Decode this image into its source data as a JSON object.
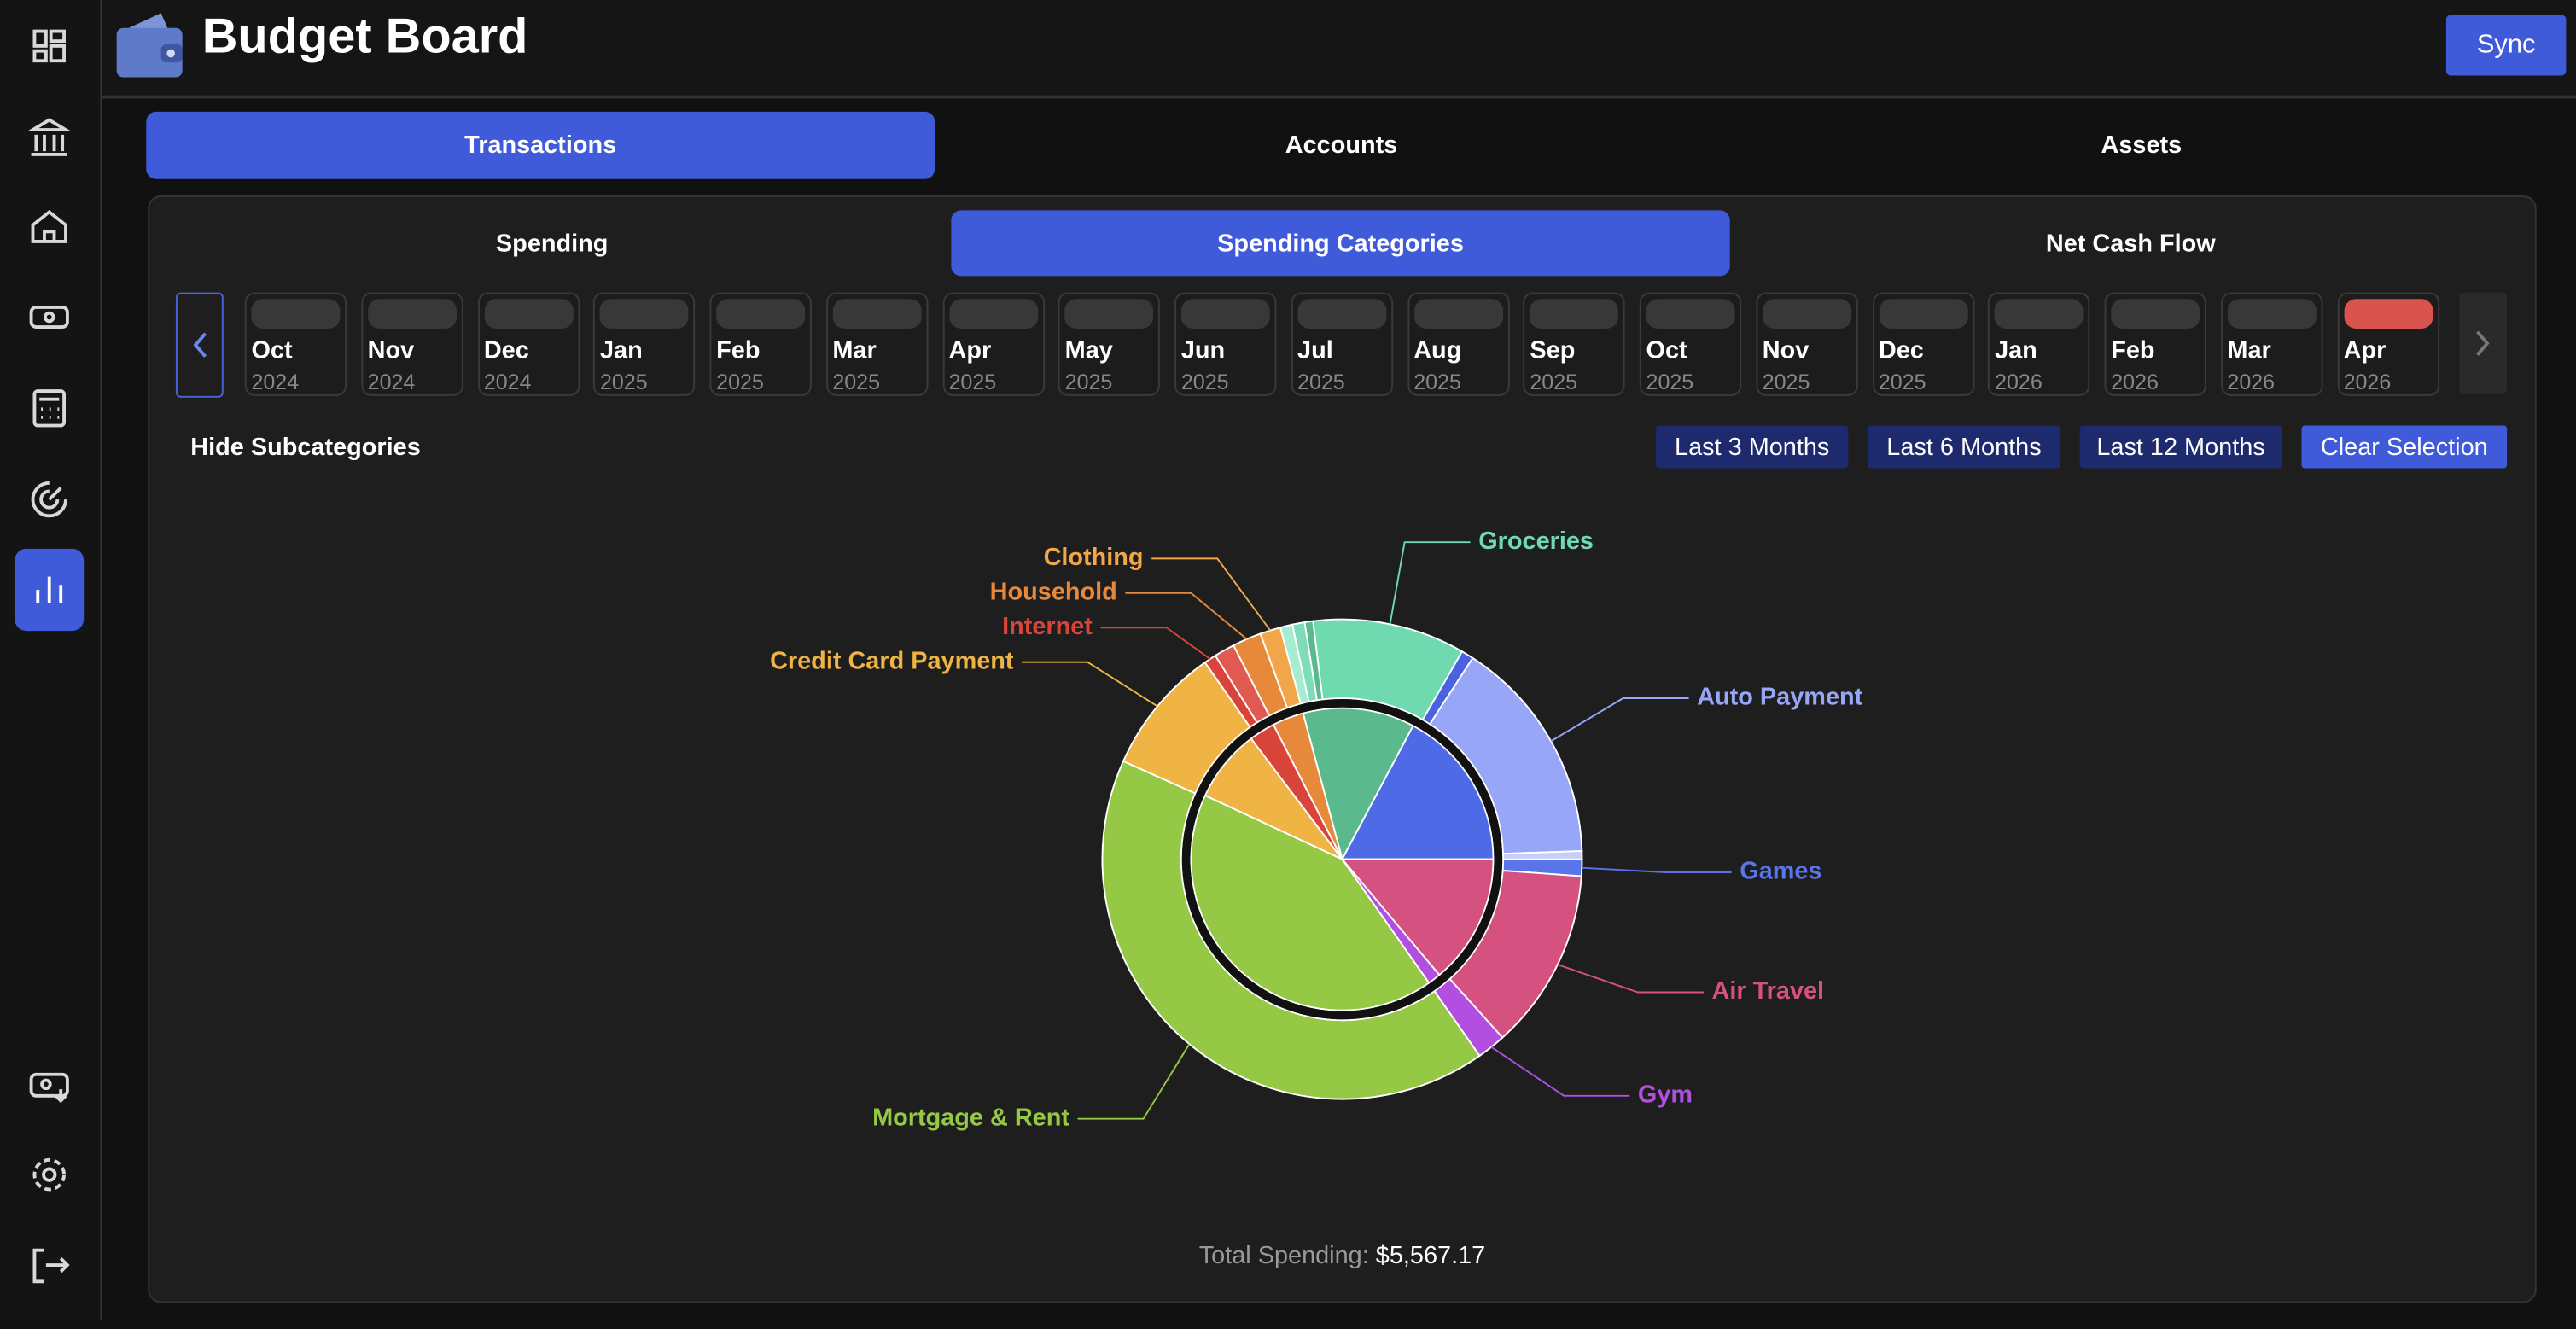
{
  "header": {
    "title": "Budget Board",
    "sync": "Sync"
  },
  "tabs": [
    "Transactions",
    "Accounts",
    "Assets"
  ],
  "subtabs": [
    "Spending",
    "Spending Categories",
    "Net Cash Flow"
  ],
  "months": [
    {
      "month": "Oct",
      "year": "2024"
    },
    {
      "month": "Nov",
      "year": "2024"
    },
    {
      "month": "Dec",
      "year": "2024"
    },
    {
      "month": "Jan",
      "year": "2025"
    },
    {
      "month": "Feb",
      "year": "2025"
    },
    {
      "month": "Mar",
      "year": "2025"
    },
    {
      "month": "Apr",
      "year": "2025"
    },
    {
      "month": "May",
      "year": "2025"
    },
    {
      "month": "Jun",
      "year": "2025"
    },
    {
      "month": "Jul",
      "year": "2025"
    },
    {
      "month": "Aug",
      "year": "2025"
    },
    {
      "month": "Sep",
      "year": "2025"
    },
    {
      "month": "Oct",
      "year": "2025"
    },
    {
      "month": "Nov",
      "year": "2025"
    },
    {
      "month": "Dec",
      "year": "2025"
    },
    {
      "month": "Jan",
      "year": "2026"
    },
    {
      "month": "Feb",
      "year": "2026"
    },
    {
      "month": "Mar",
      "year": "2026"
    },
    {
      "month": "Apr",
      "year": "2026"
    }
  ],
  "controls": {
    "toggle": "Hide Subcategories",
    "ranges": [
      "Last 3 Months",
      "Last 6 Months",
      "Last 12 Months"
    ],
    "clear": "Clear Selection"
  },
  "chart": {
    "type": "pie",
    "outer": {
      "categories": [
        "Groceries",
        null,
        "Auto Payment",
        null,
        "Games",
        "Air Travel",
        "Gym",
        "Mortgage & Rent",
        "Credit Card Payment",
        "Internet",
        null,
        "Household",
        "Clothing",
        null,
        null,
        null
      ],
      "values": [
        572,
        46,
        851,
        31,
        62,
        680,
        108,
        2304,
        479,
        46,
        77,
        108,
        77,
        46,
        46,
        31
      ],
      "colors": [
        "#6fd9b0",
        "#4a62e0",
        "#97a6f7",
        "#c7cdfa",
        "#5a74ea",
        "#d5517f",
        "#b24fe0",
        "#95c844",
        "#f0b444",
        "#d9443a",
        "#e05a52",
        "#e7893b",
        "#f2a64a",
        "#a6ecd3",
        "#7fdcb9",
        "#5bb98e"
      ]
    },
    "inner": {
      "values": [
        665,
        959,
        773,
        77,
        2320,
        433,
        155,
        186
      ],
      "colors": [
        "#5bb98e",
        "#4e6ae6",
        "#d5517f",
        "#b24fe0",
        "#95c844",
        "#f0b444",
        "#d9443a",
        "#e7893b"
      ]
    }
  },
  "footer": {
    "total_label": "Total Spending:",
    "total_value": "$5,567.17"
  }
}
